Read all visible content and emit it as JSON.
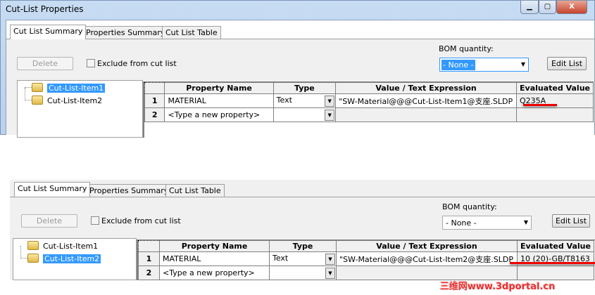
{
  "window": {
    "title": "Cut-List Properties",
    "controls": [
      "minimize",
      "maximize",
      "close"
    ]
  },
  "tabs": [
    "Cut List Summary",
    "Properties Summary",
    "Cut List Table"
  ],
  "delete_label": "Delete",
  "exclude_label": "Exclude from cut list",
  "bom_label": "BOM quantity:",
  "bom_value": "- None -",
  "edit_list_label": "Edit List",
  "tree_items": [
    "Cut-List-Item1",
    "Cut-List-Item2"
  ],
  "columns": [
    "Property Name",
    "Type",
    "Value / Text Expression",
    "Evaluated Value"
  ],
  "panel1": {
    "selected_item": "Cut-List-Item1",
    "rows": [
      {
        "num": "1",
        "name": "MATERIAL",
        "type": "Text",
        "value": "\"SW-Material@@@Cut-List-Item1@支座.SLDP",
        "evaluated": "Q235A"
      },
      {
        "num": "2",
        "name": "<Type a new property>",
        "type": "",
        "value": "",
        "evaluated": ""
      }
    ]
  },
  "panel2": {
    "selected_item": "Cut-List-Item2",
    "rows": [
      {
        "num": "1",
        "name": "MATERIAL",
        "type": "Text",
        "value": "\"SW-Material@@@Cut-List-Item2@支座.SLDP",
        "evaluated": "10 (20)-GB/T8163"
      },
      {
        "num": "2",
        "name": "<Type a new property>",
        "type": "",
        "value": "",
        "evaluated": ""
      }
    ]
  },
  "watermark": "三维网www.3dportal.cn",
  "colors": {
    "selection": "#3399ff",
    "highlight_underline": "#e00000"
  }
}
